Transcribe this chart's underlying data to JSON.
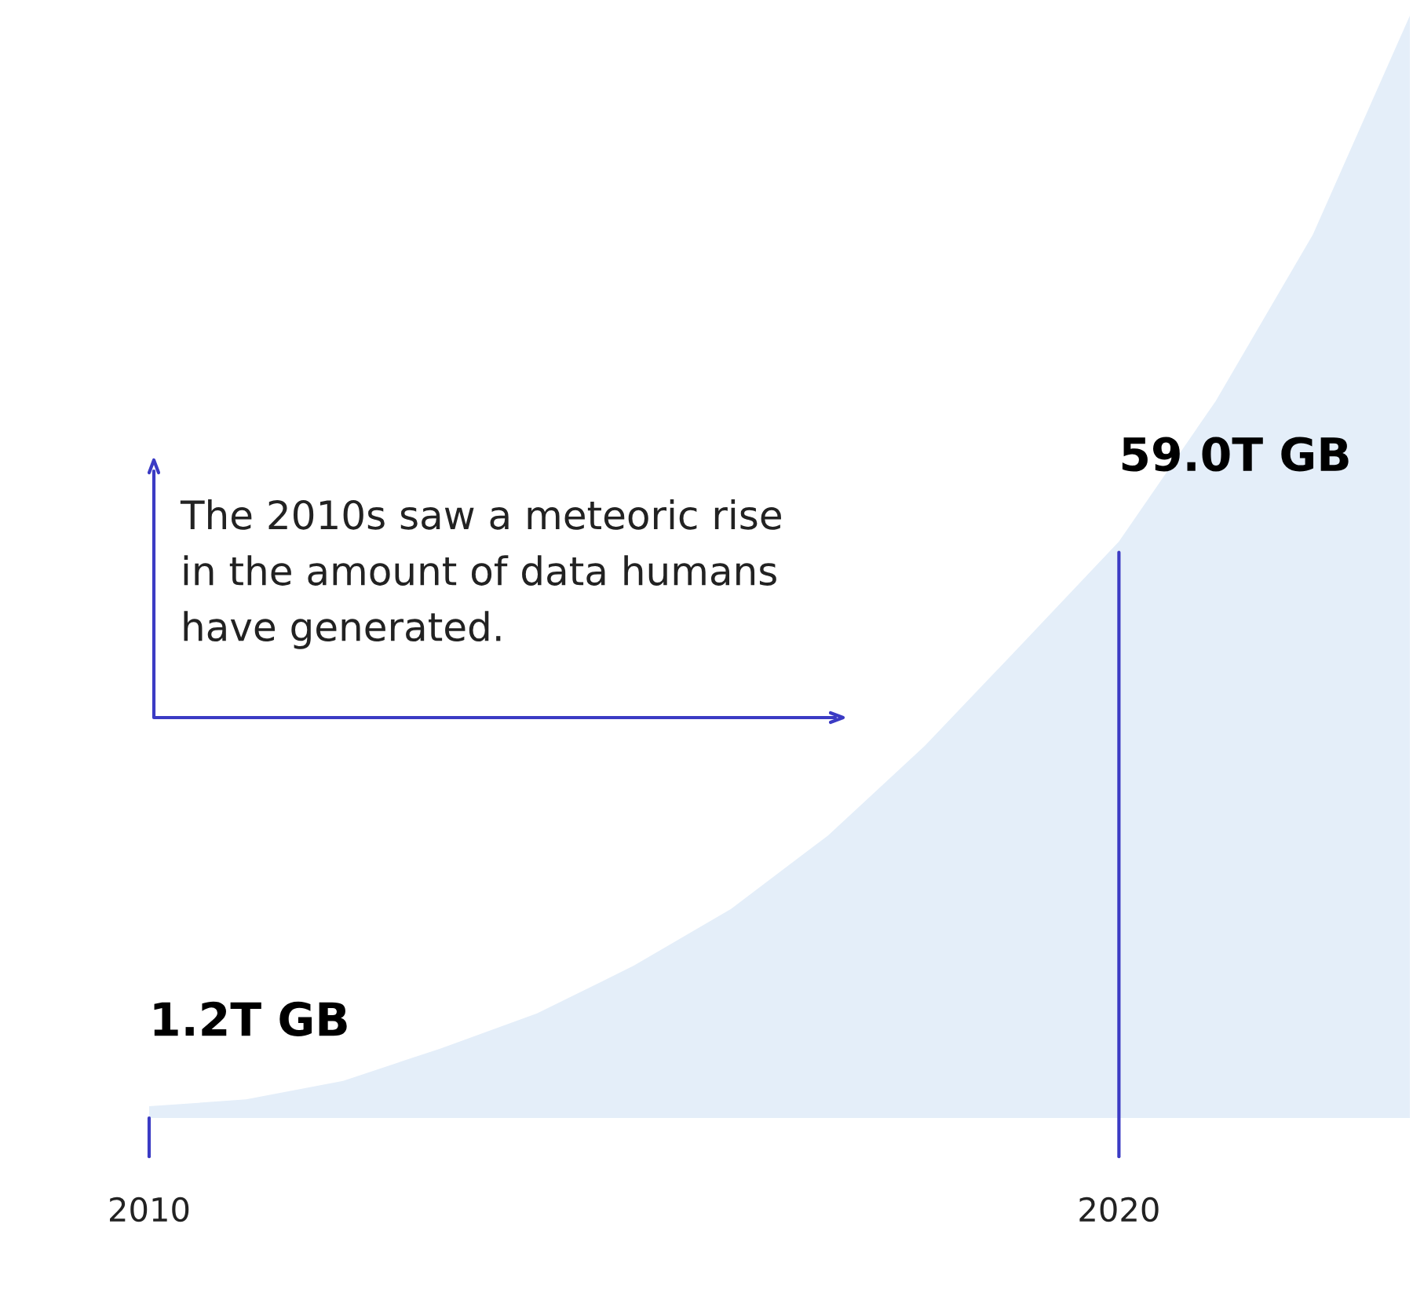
{
  "chart_data": {
    "type": "area",
    "categories": [
      "2010",
      null,
      null,
      null,
      null,
      null,
      null,
      null,
      null,
      null,
      "2020",
      null,
      null,
      null
    ],
    "series": [
      {
        "color": "#e4eef9",
        "values": [
          1.2,
          1.9,
          3.8,
          7.1,
          10.7,
          15.6,
          21.4,
          28.9,
          38.1,
          48.5,
          59.0,
          73.4,
          90.4,
          112.8
        ],
        "value_labels": [
          "1.2T GB",
          null,
          null,
          null,
          null,
          null,
          null,
          null,
          null,
          null,
          "59.0T GB",
          null,
          null,
          null
        ]
      }
    ],
    "ref_lines": [
      {
        "axis": "x",
        "value": "2010",
        "color": "#3b3bc4"
      },
      {
        "axis": "x",
        "value": "2020",
        "color": "#3b3bc4"
      }
    ],
    "annotations": [
      "The 2010s saw a meteoric rise in the amount of data humans have generated."
    ],
    "tick_labels": "x"
  }
}
